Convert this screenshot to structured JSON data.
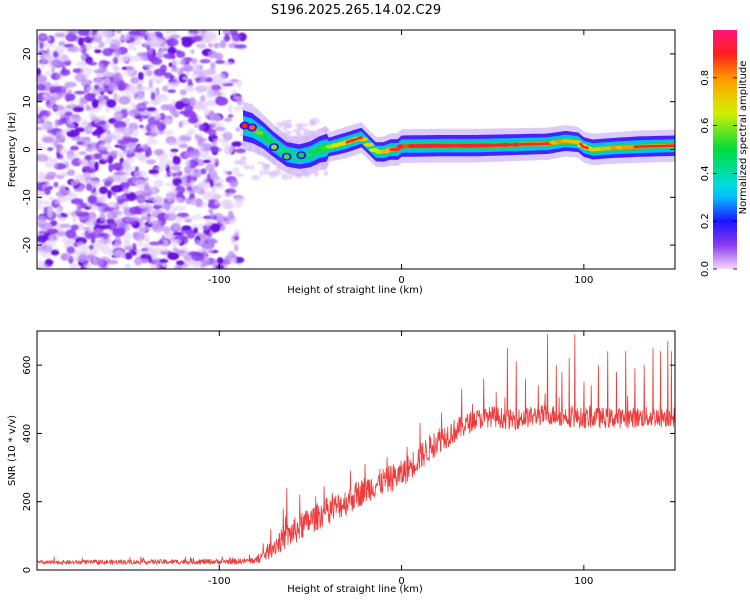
{
  "figure_title": "S196.2025.265.14.02.C29",
  "colors": {
    "snr_line": "#ee3b3b",
    "ridge_low": "#3311ff",
    "ridge_high": "#ff2030",
    "noise": "#7a2df0"
  },
  "chart_data": [
    {
      "type": "heatmap",
      "title": "S196.2025.265.14.02.C29",
      "xlabel": "Height of straight line (km)",
      "ylabel": "Frequency (Hz)",
      "xlim": [
        -200,
        150
      ],
      "ylim": [
        -25,
        25
      ],
      "xticks": [
        -100,
        0,
        100
      ],
      "xtick_labels": [
        "-100",
        "0",
        "100"
      ],
      "yticks": [
        20,
        10,
        0,
        -10,
        -20
      ],
      "ytick_labels": [
        "20",
        "10",
        "0",
        "-10",
        "-20"
      ],
      "noise_region_x": [
        -200,
        -87
      ],
      "ridge": {
        "x": [
          -87,
          -82,
          -76,
          -70,
          -63,
          -56,
          -50,
          -45,
          -40,
          -35,
          -30,
          -26,
          -22,
          -18,
          -14,
          -10,
          -6,
          -2,
          0,
          20,
          40,
          60,
          80,
          90,
          97,
          100,
          105,
          115,
          130,
          150
        ],
        "frequency": [
          5,
          4.5,
          3,
          1,
          -1,
          -1.5,
          -1,
          0,
          0.5,
          1,
          1.5,
          2,
          2.5,
          1,
          -0.5,
          -0.5,
          0,
          0,
          0.7,
          0.8,
          0.8,
          1,
          1.2,
          1.8,
          1.5,
          0.5,
          0,
          0.3,
          0.6,
          0.8
        ],
        "amplitude": [
          0.85,
          0.8,
          0.55,
          0.45,
          0.4,
          0.4,
          0.5,
          0.55,
          0.65,
          0.75,
          0.8,
          0.8,
          0.75,
          0.7,
          0.7,
          0.75,
          0.85,
          0.9,
          0.95,
          0.95,
          0.95,
          0.9,
          0.85,
          0.8,
          0.75,
          0.75,
          0.8,
          0.8,
          0.85,
          0.85
        ]
      },
      "colorbar": {
        "label": "Normalized spectral amplitude",
        "range": [
          0.0,
          1.0
        ],
        "ticks": [
          0.0,
          0.2,
          0.4,
          0.6,
          0.8
        ],
        "tick_labels": [
          "0.0",
          "0.2",
          "0.4",
          "0.6",
          "0.8"
        ]
      }
    },
    {
      "type": "line",
      "xlabel": "Height of straight line (km)",
      "ylabel": "SNR (10 * v/v)",
      "xlim": [
        -200,
        150
      ],
      "ylim": [
        0,
        700
      ],
      "xticks": [
        -100,
        0,
        100
      ],
      "xtick_labels": [
        "-100",
        "0",
        "100"
      ],
      "yticks": [
        0,
        200,
        400,
        600
      ],
      "ytick_labels": [
        "0",
        "200",
        "400",
        "600"
      ],
      "series": [
        {
          "name": "SNR",
          "color": "#ee3b3b",
          "baseline_x": [
            -200,
            -90,
            -80,
            -75,
            -70,
            -60,
            -50,
            -40,
            -30,
            -20,
            -10,
            0,
            10,
            20,
            30,
            40,
            50,
            60,
            80,
            100,
            120,
            150
          ],
          "baseline_y": [
            22,
            25,
            28,
            45,
            70,
            110,
            145,
            175,
            200,
            235,
            260,
            280,
            330,
            380,
            410,
            440,
            450,
            440,
            455,
            445,
            445,
            450
          ],
          "noise_amplitude": [
            6,
            8,
            10,
            20,
            30,
            40,
            40,
            40,
            40,
            40,
            40,
            40,
            40,
            40,
            35,
            30,
            30,
            30,
            30,
            30,
            30,
            30
          ],
          "peaks_x": [
            -63,
            -56,
            -47,
            -38,
            -28,
            -20,
            -8,
            3,
            10,
            22,
            33,
            45,
            52,
            58,
            63,
            68,
            75,
            80,
            85,
            88,
            92,
            95,
            100,
            104,
            108,
            113,
            118,
            123,
            128,
            133,
            138,
            142,
            146,
            148
          ],
          "peaks_y": [
            240,
            220,
            215,
            225,
            290,
            310,
            330,
            360,
            430,
            460,
            530,
            560,
            520,
            650,
            610,
            560,
            540,
            690,
            600,
            580,
            620,
            690,
            550,
            540,
            600,
            640,
            580,
            640,
            590,
            600,
            650,
            640,
            670,
            640
          ]
        }
      ]
    }
  ]
}
